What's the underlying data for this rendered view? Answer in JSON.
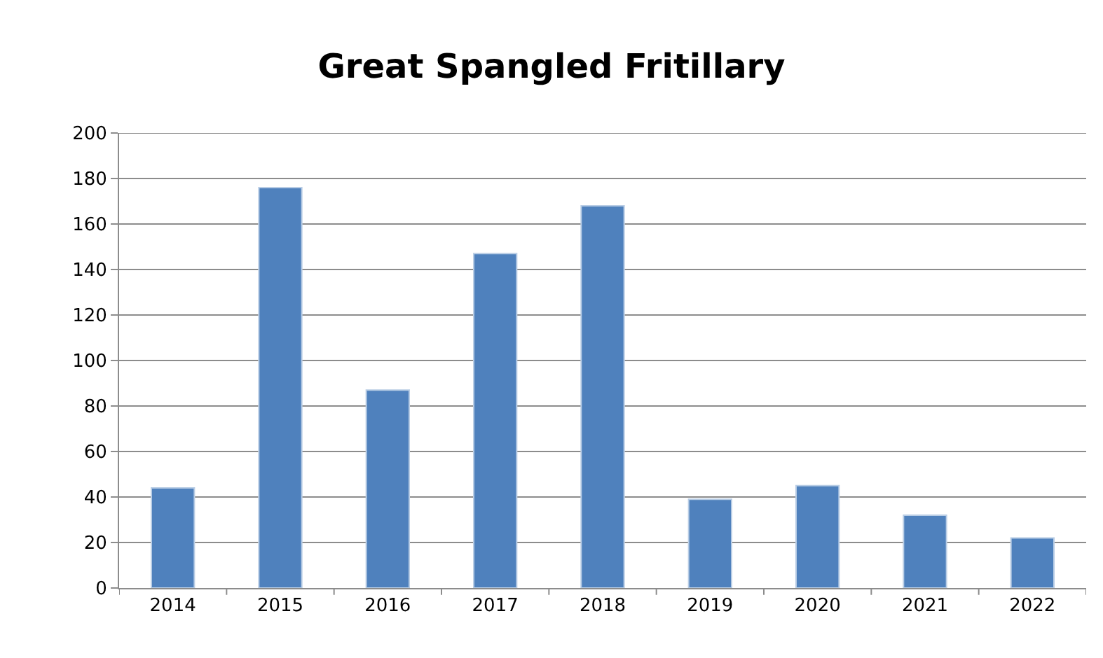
{
  "chart_data": {
    "type": "bar",
    "title": "Great Spangled Fritillary",
    "categories": [
      "2014",
      "2015",
      "2016",
      "2017",
      "2018",
      "2019",
      "2020",
      "2021",
      "2022"
    ],
    "values": [
      44,
      176,
      87,
      147,
      168,
      39,
      45,
      32,
      22
    ],
    "color": "#4f81bd",
    "ylim": [
      0,
      200
    ],
    "yticks": [
      0,
      20,
      40,
      60,
      80,
      100,
      120,
      140,
      160,
      180,
      200
    ],
    "grid": "y"
  }
}
